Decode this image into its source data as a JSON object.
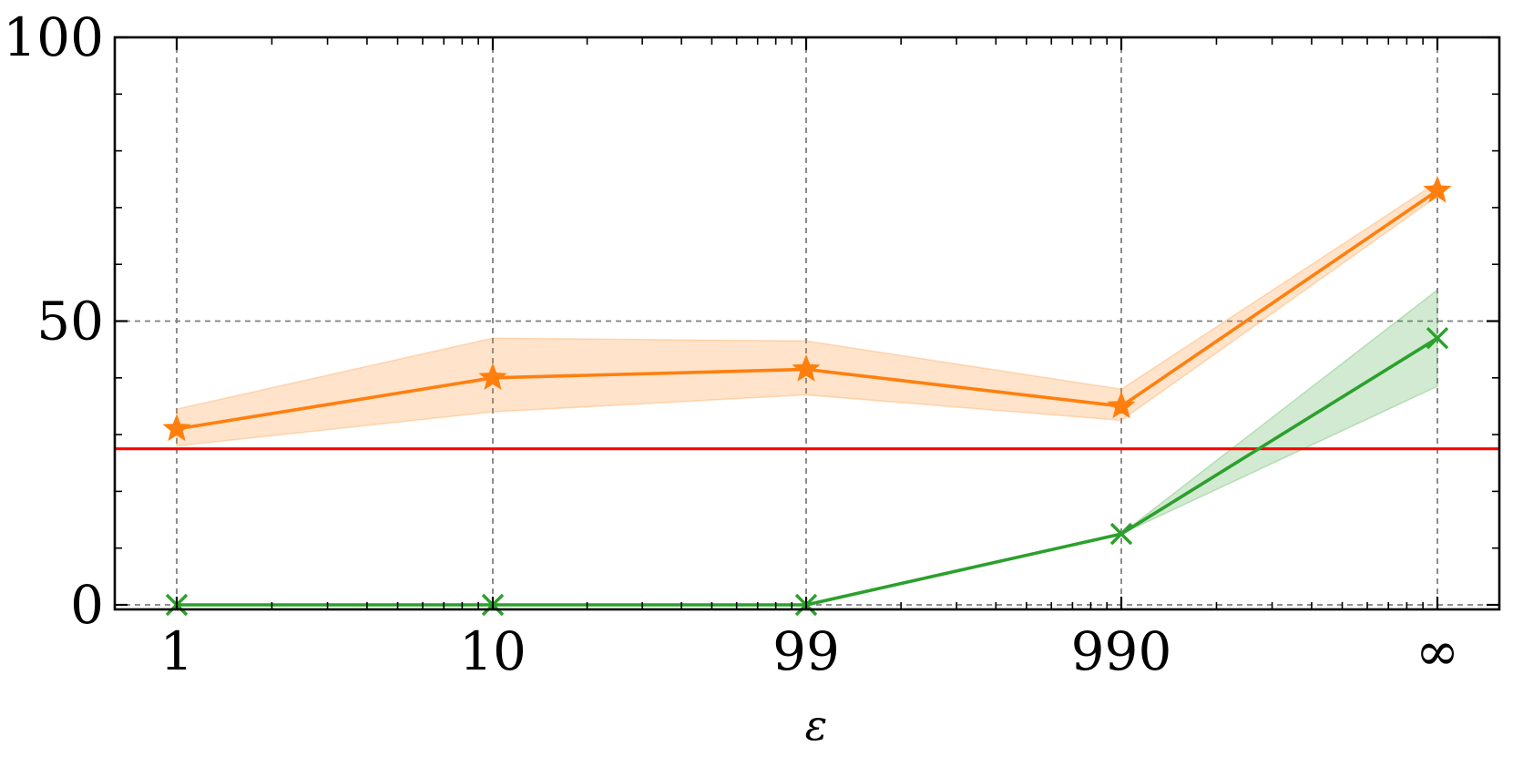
{
  "chart_data": {
    "type": "line",
    "title": "",
    "xlabel": "ε",
    "ylabel": "",
    "categories": [
      "1",
      "10",
      "99",
      "990",
      "∞"
    ],
    "ylim": [
      0,
      100
    ],
    "yticks": [
      0,
      50,
      100
    ],
    "grid": true,
    "legend": "none",
    "series": [
      {
        "color": "#ff7f0e",
        "marker": "star",
        "values": [
          31,
          40,
          41.5,
          35,
          73
        ],
        "lower": [
          28,
          34,
          37,
          32.5,
          72
        ],
        "upper": [
          34.5,
          47,
          46.5,
          38,
          74.5
        ]
      },
      {
        "color": "#2ca02c",
        "marker": "x",
        "values": [
          0,
          0,
          0,
          12.5,
          47
        ],
        "lower": [
          0,
          0,
          0,
          12.5,
          38.5
        ],
        "upper": [
          0,
          0,
          0,
          12.5,
          55.5
        ]
      }
    ],
    "reference_lines": [
      {
        "y": 27.5,
        "color": "#ff0000"
      }
    ]
  }
}
